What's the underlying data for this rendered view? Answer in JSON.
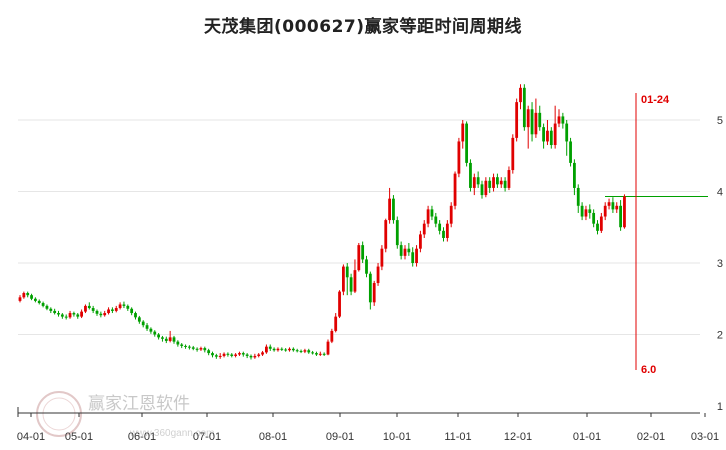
{
  "chart_data": {
    "type": "candlestick",
    "title": "天茂集团(000627)赢家等距时间周期线",
    "x_tick_labels": [
      "04-01",
      "05-01",
      "06-01",
      "07-01",
      "08-01",
      "09-01",
      "10-01",
      "11-01",
      "12-01",
      "01-01",
      "02-01",
      "03-01"
    ],
    "y_tick_labels": [
      "5",
      "4",
      "3",
      "2",
      "1"
    ],
    "y_ticks": [
      5,
      4,
      3,
      2,
      1
    ],
    "ylim": [
      1,
      5.6
    ],
    "horizontal_line": {
      "value": 3.93
    },
    "vertical_marker": {
      "label_top": "01-24",
      "label_bottom": "6.0"
    },
    "colors": {
      "up": "#e00000",
      "down": "#00a000",
      "marker": "#e00000",
      "hline": "#00a000",
      "grid": "#e6e6e6"
    },
    "candles": [
      {
        "t": 1,
        "o": 2.47,
        "c": 2.52,
        "h": 2.55,
        "l": 2.45
      },
      {
        "t": 2,
        "o": 2.52,
        "c": 2.58,
        "h": 2.6,
        "l": 2.5
      },
      {
        "t": 3,
        "o": 2.58,
        "c": 2.55,
        "h": 2.6,
        "l": 2.52
      },
      {
        "t": 4,
        "o": 2.55,
        "c": 2.5,
        "h": 2.57,
        "l": 2.48
      },
      {
        "t": 5,
        "o": 2.5,
        "c": 2.47,
        "h": 2.52,
        "l": 2.45
      },
      {
        "t": 6,
        "o": 2.47,
        "c": 2.44,
        "h": 2.49,
        "l": 2.42
      },
      {
        "t": 7,
        "o": 2.44,
        "c": 2.4,
        "h": 2.46,
        "l": 2.38
      },
      {
        "t": 8,
        "o": 2.4,
        "c": 2.36,
        "h": 2.42,
        "l": 2.34
      },
      {
        "t": 9,
        "o": 2.36,
        "c": 2.33,
        "h": 2.38,
        "l": 2.3
      },
      {
        "t": 10,
        "o": 2.33,
        "c": 2.3,
        "h": 2.36,
        "l": 2.28
      },
      {
        "t": 11,
        "o": 2.3,
        "c": 2.28,
        "h": 2.33,
        "l": 2.25
      },
      {
        "t": 12,
        "o": 2.28,
        "c": 2.25,
        "h": 2.3,
        "l": 2.22
      },
      {
        "t": 13,
        "o": 2.25,
        "c": 2.24,
        "h": 2.28,
        "l": 2.21
      },
      {
        "t": 14,
        "o": 2.24,
        "c": 2.3,
        "h": 2.33,
        "l": 2.22
      },
      {
        "t": 15,
        "o": 2.3,
        "c": 2.28,
        "h": 2.32,
        "l": 2.25
      },
      {
        "t": 16,
        "o": 2.28,
        "c": 2.25,
        "h": 2.3,
        "l": 2.22
      },
      {
        "t": 17,
        "o": 2.25,
        "c": 2.32,
        "h": 2.35,
        "l": 2.23
      },
      {
        "t": 18,
        "o": 2.32,
        "c": 2.4,
        "h": 2.42,
        "l": 2.3
      },
      {
        "t": 19,
        "o": 2.4,
        "c": 2.37,
        "h": 2.45,
        "l": 2.35
      },
      {
        "t": 20,
        "o": 2.37,
        "c": 2.33,
        "h": 2.4,
        "l": 2.3
      },
      {
        "t": 21,
        "o": 2.33,
        "c": 2.29,
        "h": 2.35,
        "l": 2.26
      },
      {
        "t": 22,
        "o": 2.29,
        "c": 2.27,
        "h": 2.32,
        "l": 2.24
      },
      {
        "t": 23,
        "o": 2.27,
        "c": 2.3,
        "h": 2.33,
        "l": 2.25
      },
      {
        "t": 24,
        "o": 2.3,
        "c": 2.35,
        "h": 2.38,
        "l": 2.28
      },
      {
        "t": 25,
        "o": 2.35,
        "c": 2.33,
        "h": 2.38,
        "l": 2.3
      },
      {
        "t": 26,
        "o": 2.33,
        "c": 2.37,
        "h": 2.4,
        "l": 2.31
      },
      {
        "t": 27,
        "o": 2.37,
        "c": 2.42,
        "h": 2.45,
        "l": 2.35
      },
      {
        "t": 28,
        "o": 2.42,
        "c": 2.4,
        "h": 2.46,
        "l": 2.37
      },
      {
        "t": 29,
        "o": 2.4,
        "c": 2.36,
        "h": 2.42,
        "l": 2.33
      },
      {
        "t": 30,
        "o": 2.36,
        "c": 2.3,
        "h": 2.38,
        "l": 2.27
      },
      {
        "t": 31,
        "o": 2.3,
        "c": 2.24,
        "h": 2.32,
        "l": 2.21
      },
      {
        "t": 32,
        "o": 2.24,
        "c": 2.18,
        "h": 2.26,
        "l": 2.15
      },
      {
        "t": 33,
        "o": 2.18,
        "c": 2.13,
        "h": 2.2,
        "l": 2.1
      },
      {
        "t": 34,
        "o": 2.13,
        "c": 2.08,
        "h": 2.16,
        "l": 2.05
      },
      {
        "t": 35,
        "o": 2.08,
        "c": 2.04,
        "h": 2.1,
        "l": 2.01
      },
      {
        "t": 36,
        "o": 2.04,
        "c": 2.0,
        "h": 2.06,
        "l": 1.97
      },
      {
        "t": 37,
        "o": 2.0,
        "c": 1.96,
        "h": 2.02,
        "l": 1.93
      },
      {
        "t": 38,
        "o": 1.96,
        "c": 1.94,
        "h": 1.98,
        "l": 1.9
      },
      {
        "t": 39,
        "o": 1.94,
        "c": 1.91,
        "h": 1.97,
        "l": 1.88
      },
      {
        "t": 40,
        "o": 1.91,
        "c": 1.96,
        "h": 2.05,
        "l": 1.89
      },
      {
        "t": 41,
        "o": 1.96,
        "c": 1.9,
        "h": 1.98,
        "l": 1.87
      },
      {
        "t": 42,
        "o": 1.9,
        "c": 1.86,
        "h": 1.92,
        "l": 1.83
      },
      {
        "t": 43,
        "o": 1.86,
        "c": 1.84,
        "h": 1.88,
        "l": 1.81
      },
      {
        "t": 44,
        "o": 1.84,
        "c": 1.83,
        "h": 1.86,
        "l": 1.8
      },
      {
        "t": 45,
        "o": 1.83,
        "c": 1.82,
        "h": 1.85,
        "l": 1.79
      },
      {
        "t": 46,
        "o": 1.82,
        "c": 1.8,
        "h": 1.84,
        "l": 1.78
      },
      {
        "t": 47,
        "o": 1.8,
        "c": 1.79,
        "h": 1.82,
        "l": 1.76
      },
      {
        "t": 48,
        "o": 1.79,
        "c": 1.81,
        "h": 1.83,
        "l": 1.77
      },
      {
        "t": 49,
        "o": 1.81,
        "c": 1.78,
        "h": 1.83,
        "l": 1.75
      },
      {
        "t": 50,
        "o": 1.78,
        "c": 1.74,
        "h": 1.8,
        "l": 1.71
      },
      {
        "t": 51,
        "o": 1.74,
        "c": 1.71,
        "h": 1.76,
        "l": 1.68
      },
      {
        "t": 52,
        "o": 1.71,
        "c": 1.69,
        "h": 1.73,
        "l": 1.66
      },
      {
        "t": 53,
        "o": 1.69,
        "c": 1.7,
        "h": 1.74,
        "l": 1.66
      },
      {
        "t": 54,
        "o": 1.7,
        "c": 1.73,
        "h": 1.75,
        "l": 1.68
      },
      {
        "t": 55,
        "o": 1.73,
        "c": 1.72,
        "h": 1.75,
        "l": 1.69
      },
      {
        "t": 56,
        "o": 1.72,
        "c": 1.7,
        "h": 1.74,
        "l": 1.68
      },
      {
        "t": 57,
        "o": 1.7,
        "c": 1.72,
        "h": 1.74,
        "l": 1.68
      },
      {
        "t": 58,
        "o": 1.72,
        "c": 1.74,
        "h": 1.76,
        "l": 1.7
      },
      {
        "t": 59,
        "o": 1.74,
        "c": 1.72,
        "h": 1.76,
        "l": 1.69
      },
      {
        "t": 60,
        "o": 1.72,
        "c": 1.7,
        "h": 1.74,
        "l": 1.67
      },
      {
        "t": 61,
        "o": 1.7,
        "c": 1.68,
        "h": 1.72,
        "l": 1.65
      },
      {
        "t": 62,
        "o": 1.68,
        "c": 1.7,
        "h": 1.73,
        "l": 1.66
      },
      {
        "t": 63,
        "o": 1.7,
        "c": 1.72,
        "h": 1.74,
        "l": 1.68
      },
      {
        "t": 64,
        "o": 1.72,
        "c": 1.75,
        "h": 1.77,
        "l": 1.7
      },
      {
        "t": 65,
        "o": 1.75,
        "c": 1.83,
        "h": 1.86,
        "l": 1.73
      },
      {
        "t": 66,
        "o": 1.83,
        "c": 1.8,
        "h": 1.86,
        "l": 1.77
      },
      {
        "t": 67,
        "o": 1.8,
        "c": 1.78,
        "h": 1.82,
        "l": 1.76
      },
      {
        "t": 68,
        "o": 1.78,
        "c": 1.8,
        "h": 1.82,
        "l": 1.76
      },
      {
        "t": 69,
        "o": 1.8,
        "c": 1.79,
        "h": 1.82,
        "l": 1.77
      },
      {
        "t": 70,
        "o": 1.79,
        "c": 1.78,
        "h": 1.81,
        "l": 1.76
      },
      {
        "t": 71,
        "o": 1.78,
        "c": 1.8,
        "h": 1.82,
        "l": 1.76
      },
      {
        "t": 72,
        "o": 1.8,
        "c": 1.78,
        "h": 1.82,
        "l": 1.76
      },
      {
        "t": 73,
        "o": 1.78,
        "c": 1.77,
        "h": 1.8,
        "l": 1.75
      },
      {
        "t": 74,
        "o": 1.77,
        "c": 1.76,
        "h": 1.79,
        "l": 1.74
      },
      {
        "t": 75,
        "o": 1.76,
        "c": 1.78,
        "h": 1.8,
        "l": 1.74
      },
      {
        "t": 76,
        "o": 1.78,
        "c": 1.75,
        "h": 1.8,
        "l": 1.73
      },
      {
        "t": 77,
        "o": 1.75,
        "c": 1.74,
        "h": 1.77,
        "l": 1.72
      },
      {
        "t": 78,
        "o": 1.74,
        "c": 1.72,
        "h": 1.76,
        "l": 1.7
      },
      {
        "t": 79,
        "o": 1.72,
        "c": 1.73,
        "h": 1.76,
        "l": 1.7
      },
      {
        "t": 80,
        "o": 1.73,
        "c": 1.72,
        "h": 1.75,
        "l": 1.7
      },
      {
        "t": 81,
        "o": 1.72,
        "c": 1.9,
        "h": 1.93,
        "l": 1.71
      },
      {
        "t": 82,
        "o": 1.9,
        "c": 2.05,
        "h": 2.08,
        "l": 1.88
      },
      {
        "t": 83,
        "o": 2.05,
        "c": 2.25,
        "h": 2.3,
        "l": 2.03
      },
      {
        "t": 84,
        "o": 2.25,
        "c": 2.6,
        "h": 2.62,
        "l": 2.23
      },
      {
        "t": 85,
        "o": 2.6,
        "c": 2.95,
        "h": 2.98,
        "l": 2.55
      },
      {
        "t": 86,
        "o": 2.95,
        "c": 2.8,
        "h": 3.0,
        "l": 2.55
      },
      {
        "t": 87,
        "o": 2.8,
        "c": 2.6,
        "h": 2.85,
        "l": 2.55
      },
      {
        "t": 88,
        "o": 2.6,
        "c": 2.9,
        "h": 3.05,
        "l": 2.58
      },
      {
        "t": 89,
        "o": 2.9,
        "c": 3.25,
        "h": 3.28,
        "l": 2.88
      },
      {
        "t": 90,
        "o": 3.25,
        "c": 3.05,
        "h": 3.3,
        "l": 3.0
      },
      {
        "t": 91,
        "o": 3.05,
        "c": 2.85,
        "h": 3.1,
        "l": 2.8
      },
      {
        "t": 92,
        "o": 2.85,
        "c": 2.45,
        "h": 2.88,
        "l": 2.35
      },
      {
        "t": 93,
        "o": 2.45,
        "c": 2.72,
        "h": 2.75,
        "l": 2.4
      },
      {
        "t": 94,
        "o": 2.72,
        "c": 2.95,
        "h": 3.0,
        "l": 2.68
      },
      {
        "t": 95,
        "o": 2.95,
        "c": 3.2,
        "h": 3.25,
        "l": 2.9
      },
      {
        "t": 96,
        "o": 3.2,
        "c": 3.6,
        "h": 3.62,
        "l": 3.15
      },
      {
        "t": 97,
        "o": 3.6,
        "c": 3.9,
        "h": 4.05,
        "l": 3.55
      },
      {
        "t": 98,
        "o": 3.9,
        "c": 3.6,
        "h": 3.95,
        "l": 3.55
      },
      {
        "t": 99,
        "o": 3.6,
        "c": 3.25,
        "h": 3.65,
        "l": 3.2
      },
      {
        "t": 100,
        "o": 3.25,
        "c": 3.1,
        "h": 3.3,
        "l": 3.05
      },
      {
        "t": 101,
        "o": 3.1,
        "c": 3.2,
        "h": 3.25,
        "l": 3.05
      },
      {
        "t": 102,
        "o": 3.2,
        "c": 3.15,
        "h": 3.28,
        "l": 3.1
      },
      {
        "t": 103,
        "o": 3.15,
        "c": 3.0,
        "h": 3.22,
        "l": 2.95
      },
      {
        "t": 104,
        "o": 3.0,
        "c": 3.2,
        "h": 3.25,
        "l": 2.95
      },
      {
        "t": 105,
        "o": 3.2,
        "c": 3.4,
        "h": 3.45,
        "l": 3.15
      },
      {
        "t": 106,
        "o": 3.4,
        "c": 3.55,
        "h": 3.6,
        "l": 3.35
      },
      {
        "t": 107,
        "o": 3.55,
        "c": 3.75,
        "h": 3.8,
        "l": 3.5
      },
      {
        "t": 108,
        "o": 3.75,
        "c": 3.65,
        "h": 3.8,
        "l": 3.6
      },
      {
        "t": 109,
        "o": 3.65,
        "c": 3.55,
        "h": 3.7,
        "l": 3.5
      },
      {
        "t": 110,
        "o": 3.55,
        "c": 3.45,
        "h": 3.6,
        "l": 3.4
      },
      {
        "t": 111,
        "o": 3.45,
        "c": 3.35,
        "h": 3.5,
        "l": 3.3
      },
      {
        "t": 112,
        "o": 3.35,
        "c": 3.55,
        "h": 3.6,
        "l": 3.3
      },
      {
        "t": 113,
        "o": 3.55,
        "c": 3.8,
        "h": 3.85,
        "l": 3.5
      },
      {
        "t": 114,
        "o": 3.8,
        "c": 4.25,
        "h": 4.28,
        "l": 3.75
      },
      {
        "t": 115,
        "o": 4.25,
        "c": 4.7,
        "h": 4.75,
        "l": 4.2
      },
      {
        "t": 116,
        "o": 4.7,
        "c": 4.95,
        "h": 5.0,
        "l": 4.6
      },
      {
        "t": 117,
        "o": 4.95,
        "c": 4.4,
        "h": 4.98,
        "l": 4.35
      },
      {
        "t": 118,
        "o": 4.4,
        "c": 4.05,
        "h": 4.45,
        "l": 4.0
      },
      {
        "t": 119,
        "o": 4.05,
        "c": 4.2,
        "h": 4.25,
        "l": 3.95
      },
      {
        "t": 120,
        "o": 4.2,
        "c": 4.1,
        "h": 4.28,
        "l": 4.05
      },
      {
        "t": 121,
        "o": 4.1,
        "c": 3.95,
        "h": 4.15,
        "l": 3.9
      },
      {
        "t": 122,
        "o": 3.95,
        "c": 4.15,
        "h": 4.2,
        "l": 3.92
      },
      {
        "t": 123,
        "o": 4.15,
        "c": 4.05,
        "h": 4.2,
        "l": 3.98
      },
      {
        "t": 124,
        "o": 4.05,
        "c": 4.2,
        "h": 4.25,
        "l": 4.0
      },
      {
        "t": 125,
        "o": 4.2,
        "c": 4.1,
        "h": 4.25,
        "l": 4.05
      },
      {
        "t": 126,
        "o": 4.1,
        "c": 4.15,
        "h": 4.2,
        "l": 4.05
      },
      {
        "t": 127,
        "o": 4.15,
        "c": 4.05,
        "h": 4.2,
        "l": 4.0
      },
      {
        "t": 128,
        "o": 4.05,
        "c": 4.3,
        "h": 4.35,
        "l": 4.02
      },
      {
        "t": 129,
        "o": 4.3,
        "c": 4.75,
        "h": 4.8,
        "l": 4.25
      },
      {
        "t": 130,
        "o": 4.75,
        "c": 5.25,
        "h": 5.3,
        "l": 4.7
      },
      {
        "t": 131,
        "o": 5.25,
        "c": 5.45,
        "h": 5.5,
        "l": 5.15
      },
      {
        "t": 132,
        "o": 5.45,
        "c": 4.9,
        "h": 5.5,
        "l": 4.85
      },
      {
        "t": 133,
        "o": 4.9,
        "c": 5.15,
        "h": 5.2,
        "l": 4.6
      },
      {
        "t": 134,
        "o": 5.15,
        "c": 4.8,
        "h": 5.25,
        "l": 4.7
      },
      {
        "t": 135,
        "o": 4.8,
        "c": 5.1,
        "h": 5.3,
        "l": 4.75
      },
      {
        "t": 136,
        "o": 5.1,
        "c": 4.9,
        "h": 5.2,
        "l": 4.85
      },
      {
        "t": 137,
        "o": 4.9,
        "c": 4.7,
        "h": 4.95,
        "l": 4.6
      },
      {
        "t": 138,
        "o": 4.7,
        "c": 4.85,
        "h": 5.0,
        "l": 4.65
      },
      {
        "t": 139,
        "o": 4.85,
        "c": 4.65,
        "h": 4.9,
        "l": 4.6
      },
      {
        "t": 140,
        "o": 4.65,
        "c": 4.95,
        "h": 5.2,
        "l": 4.6
      },
      {
        "t": 141,
        "o": 4.95,
        "c": 5.05,
        "h": 5.15,
        "l": 4.9
      },
      {
        "t": 142,
        "o": 5.05,
        "c": 4.95,
        "h": 5.1,
        "l": 4.88
      },
      {
        "t": 143,
        "o": 4.95,
        "c": 4.7,
        "h": 5.0,
        "l": 4.5
      },
      {
        "t": 144,
        "o": 4.7,
        "c": 4.4,
        "h": 4.75,
        "l": 4.35
      },
      {
        "t": 145,
        "o": 4.4,
        "c": 4.05,
        "h": 4.45,
        "l": 3.95
      },
      {
        "t": 146,
        "o": 4.05,
        "c": 3.8,
        "h": 4.1,
        "l": 3.7
      },
      {
        "t": 147,
        "o": 3.8,
        "c": 3.65,
        "h": 3.85,
        "l": 3.6
      },
      {
        "t": 148,
        "o": 3.65,
        "c": 3.75,
        "h": 3.8,
        "l": 3.6
      },
      {
        "t": 149,
        "o": 3.75,
        "c": 3.7,
        "h": 3.82,
        "l": 3.62
      },
      {
        "t": 150,
        "o": 3.7,
        "c": 3.55,
        "h": 3.75,
        "l": 3.5
      },
      {
        "t": 151,
        "o": 3.55,
        "c": 3.45,
        "h": 3.6,
        "l": 3.4
      },
      {
        "t": 152,
        "o": 3.45,
        "c": 3.65,
        "h": 3.7,
        "l": 3.42
      },
      {
        "t": 153,
        "o": 3.65,
        "c": 3.8,
        "h": 3.85,
        "l": 3.6
      },
      {
        "t": 154,
        "o": 3.8,
        "c": 3.85,
        "h": 3.9,
        "l": 3.75
      },
      {
        "t": 155,
        "o": 3.85,
        "c": 3.75,
        "h": 3.92,
        "l": 3.7
      },
      {
        "t": 156,
        "o": 3.75,
        "c": 3.8,
        "h": 3.85,
        "l": 3.7
      },
      {
        "t": 157,
        "o": 3.8,
        "c": 3.5,
        "h": 3.88,
        "l": 3.45
      },
      {
        "t": 158,
        "o": 3.5,
        "c": 3.93,
        "h": 3.96,
        "l": 3.48
      }
    ]
  },
  "watermark": {
    "brand": "赢家江恩软件",
    "site": "www.360gann.com"
  }
}
